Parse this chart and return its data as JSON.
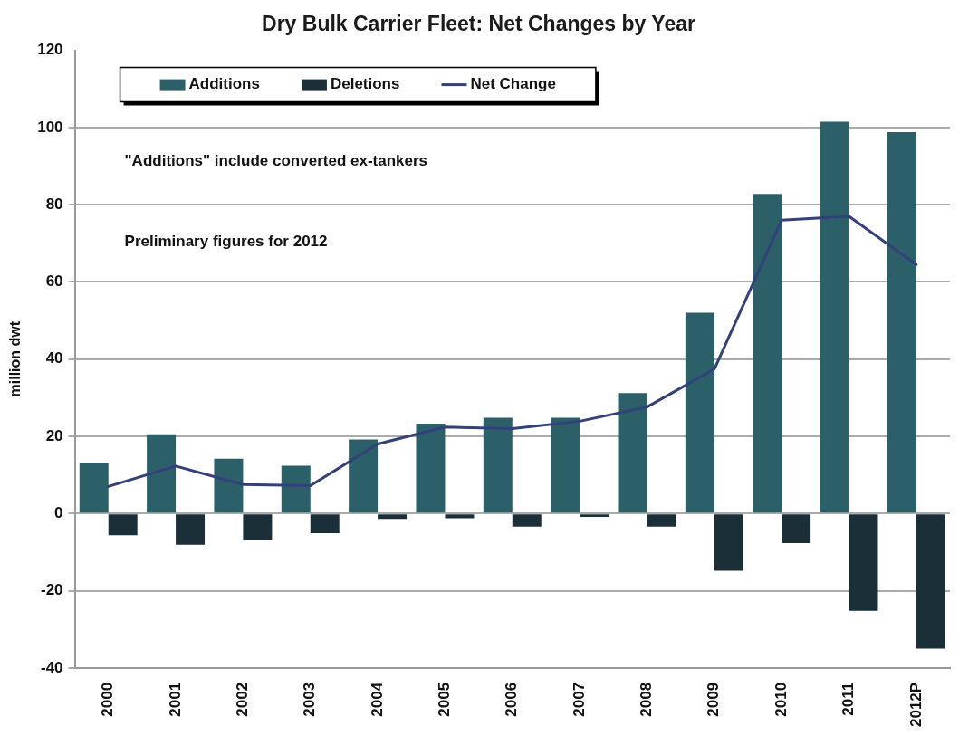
{
  "chart_data": {
    "type": "bar",
    "title": "Dry Bulk Carrier Fleet: Net Changes by Year",
    "ylabel": "million dwt",
    "categories": [
      "2000",
      "2001",
      "2002",
      "2003",
      "2004",
      "2005",
      "2006",
      "2007",
      "2008",
      "2009",
      "2010",
      "2011",
      "2012P"
    ],
    "series": [
      {
        "name": "Additions",
        "color": "#2b6069",
        "values": [
          13,
          20.5,
          14.2,
          12.4,
          19.2,
          23.3,
          24.8,
          24.8,
          31.2,
          52,
          82.8,
          101.5,
          98.8
        ]
      },
      {
        "name": "Deletions",
        "color": "#1a2f37",
        "values": [
          -5.6,
          -8.1,
          -6.8,
          -5.1,
          -1.4,
          -1.2,
          -3.4,
          -0.9,
          -3.4,
          -14.8,
          -7.7,
          -25.2,
          -35
        ]
      },
      {
        "name": "Net Change",
        "type": "line",
        "color": "#34407a",
        "values": [
          7,
          12.3,
          7.5,
          7.2,
          18,
          22.4,
          22,
          23.9,
          27.6,
          37.4,
          76,
          77,
          64.5
        ]
      }
    ],
    "ylim": [
      -40,
      120
    ],
    "yticks": [
      -40,
      -20,
      0,
      20,
      40,
      60,
      80,
      100,
      120
    ],
    "grid": "y",
    "legend": "top left",
    "line_style": "solid",
    "annotations": [
      "\"Additions\" include converted ex-tankers",
      "Preliminary figures for 2012"
    ]
  }
}
